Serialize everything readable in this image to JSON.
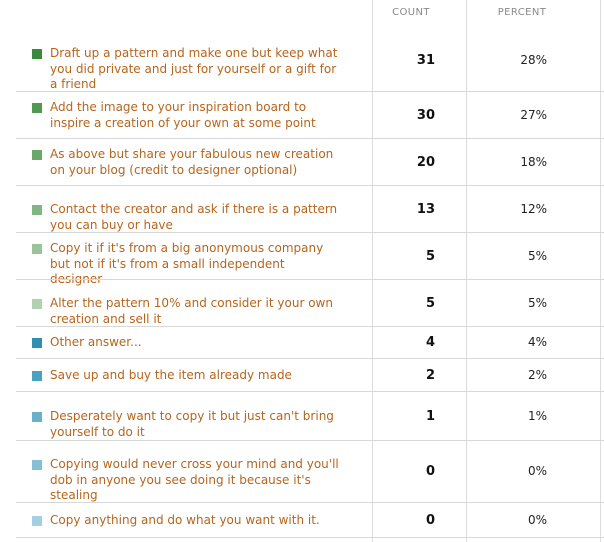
{
  "headers": {
    "count": "COUNT",
    "percent": "PERCENT"
  },
  "chart_data": {
    "type": "table",
    "columns": [
      "COUNT",
      "PERCENT"
    ],
    "rows": [
      {
        "label": "Draft up a pattern and make one but keep what you did private and just for yourself or a gift for a friend",
        "count": 31,
        "percent": "28%",
        "color": "#3a8a3c"
      },
      {
        "label": "Add the image to your inspiration board to inspire a creation of your own at some point",
        "count": 30,
        "percent": "27%",
        "color": "#4f9950"
      },
      {
        "label": "As above but share your fabulous new creation on your blog (credit to designer optional)",
        "count": 20,
        "percent": "18%",
        "color": "#6aa76a"
      },
      {
        "label": "Contact the creator and ask if there is a pattern you can buy or have",
        "count": 13,
        "percent": "12%",
        "color": "#82b582"
      },
      {
        "label": "Copy it if it's from a big anonymous company but not if it's from a small independent designer",
        "count": 5,
        "percent": "5%",
        "color": "#99c399"
      },
      {
        "label": "Alter the pattern 10% and consider it your own creation and sell it",
        "count": 5,
        "percent": "5%",
        "color": "#b1d1b1"
      },
      {
        "label": "Other answer...",
        "count": 4,
        "percent": "4%",
        "color": "#2f8fb0"
      },
      {
        "label": "Save up and buy the item already made",
        "count": 2,
        "percent": "2%",
        "color": "#4aa0bf"
      },
      {
        "label": "Desperately want to copy it but just can't bring yourself to do it",
        "count": 1,
        "percent": "1%",
        "color": "#69b1cb"
      },
      {
        "label": "Copying would never cross your mind and you'll dob in anyone you see doing it because it's stealing",
        "count": 0,
        "percent": "0%",
        "color": "#86c0d5"
      },
      {
        "label": "Copy anything and do what you want with it.",
        "count": 0,
        "percent": "0%",
        "color": "#a4cfe0"
      }
    ]
  }
}
